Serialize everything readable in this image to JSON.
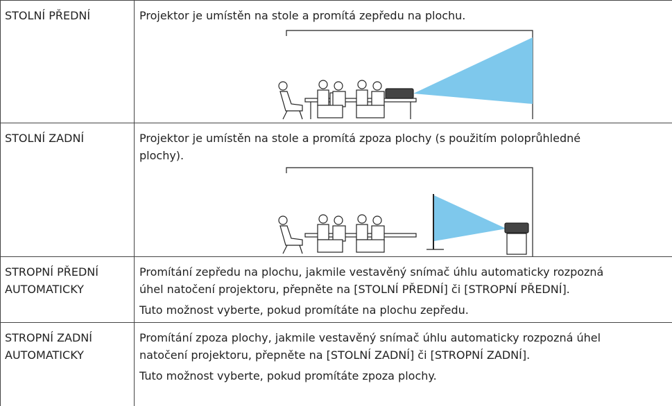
{
  "table": {
    "rows": [
      {
        "label": [
          "STOLNÍ PŘEDNÍ"
        ],
        "description": [
          [
            "Projektor je umístěn na stole a promítá zepředu na plochu."
          ]
        ]
      },
      {
        "label": [
          "STOLNÍ ZADNÍ"
        ],
        "description": [
          [
            "Projektor je umístěn na stole a promítá zpoza plochy (s použitím poloprůhledné",
            "plochy)."
          ]
        ]
      },
      {
        "label": [
          "STROPNÍ PŘEDNÍ",
          "AUTOMATICKY"
        ],
        "description": [
          [
            "Promítání zepředu na plochu, jakmile vestavěný snímač úhlu automaticky rozpozná",
            "úhel natočení projektoru, přepněte na [STOLNÍ PŘEDNÍ] či [STROPNÍ PŘEDNÍ]."
          ],
          [
            "Tuto možnost vyberte, pokud promítáte na plochu zepředu."
          ]
        ]
      },
      {
        "label": [
          "STROPNÍ ZADNÍ",
          "AUTOMATICKY"
        ],
        "description": [
          [
            "Promítání zpoza plochy, jakmile vestavěný snímač úhlu automaticky rozpozná úhel",
            "natočení projektoru, přepněte na [STOLNÍ ZADNÍ] či [STROPNÍ ZADNÍ]."
          ],
          [
            "Tuto možnost vyberte, pokud promítáte zpoza plochy."
          ]
        ]
      }
    ]
  }
}
